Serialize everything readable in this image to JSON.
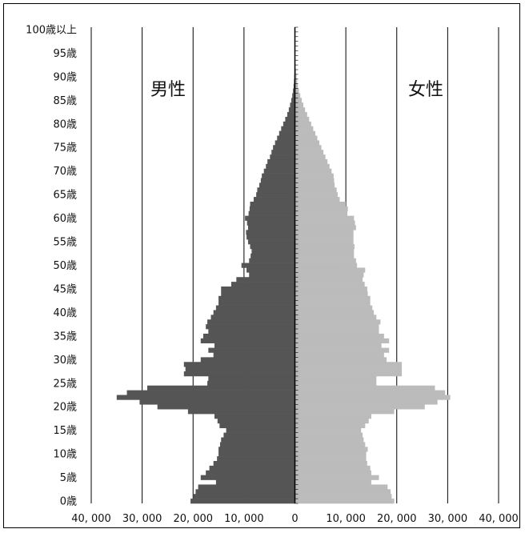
{
  "chart_data": {
    "type": "bar",
    "subtype": "population-pyramid",
    "title": "",
    "xlim": [
      -40000,
      40000
    ],
    "x_ticks": [
      -40000,
      -30000,
      -20000,
      -10000,
      0,
      10000,
      20000,
      30000,
      40000
    ],
    "x_tick_labels": [
      "40, 000",
      "30, 000",
      "20, 000",
      "10, 000",
      "0",
      "10, 000",
      "20, 000",
      "30, 000",
      "40, 000"
    ],
    "grid": "vertical",
    "age_labels": [
      "0歳",
      "5歳",
      "10歳",
      "15歳",
      "20歳",
      "25歳",
      "30歳",
      "35歳",
      "40歳",
      "45歳",
      "50歳",
      "55歳",
      "60歳",
      "65歳",
      "70歳",
      "75歳",
      "80歳",
      "85歳",
      "90歳",
      "95歳",
      "100歳以上"
    ],
    "series": [
      {
        "name": "男性",
        "side": "left",
        "color": "#555555",
        "values": [
          20500,
          20000,
          19500,
          19000,
          15500,
          18500,
          17500,
          16800,
          16000,
          15300,
          15000,
          15000,
          14700,
          14500,
          14000,
          13500,
          14800,
          15200,
          15800,
          21000,
          27000,
          30500,
          35000,
          33000,
          29000,
          17200,
          17000,
          21800,
          21500,
          21800,
          18500,
          16000,
          17000,
          15800,
          18500,
          18000,
          17000,
          17500,
          17200,
          16500,
          16000,
          15500,
          15000,
          15000,
          14500,
          14500,
          12500,
          11500,
          9000,
          9500,
          10500,
          9000,
          8700,
          8500,
          8800,
          9200,
          9500,
          9600,
          9200,
          9400,
          9800,
          9100,
          8900,
          8800,
          8100,
          7600,
          7400,
          7000,
          6700,
          6500,
          6100,
          5700,
          5400,
          4900,
          4600,
          4300,
          3900,
          3500,
          3100,
          2700,
          2300,
          1900,
          1500,
          1200,
          950,
          700,
          520,
          370,
          260,
          180,
          120,
          80,
          55,
          35,
          22,
          14,
          9,
          6,
          4,
          3,
          5
        ]
      },
      {
        "name": "女性",
        "side": "right",
        "color": "#bbbbbb",
        "values": [
          19500,
          19000,
          18800,
          18200,
          15000,
          16500,
          15000,
          14800,
          14200,
          14000,
          14000,
          14300,
          13800,
          13500,
          13300,
          13000,
          13800,
          14500,
          15000,
          19500,
          25500,
          28000,
          30500,
          29500,
          27500,
          16000,
          16000,
          21000,
          21000,
          21000,
          18000,
          17500,
          18500,
          17000,
          18500,
          17500,
          16500,
          16500,
          16800,
          16000,
          15500,
          15200,
          14800,
          14800,
          14300,
          14200,
          13700,
          13300,
          13500,
          13800,
          12200,
          12000,
          11600,
          11600,
          11700,
          11500,
          11500,
          11500,
          12000,
          11800,
          11600,
          10300,
          10400,
          10000,
          8800,
          8400,
          8200,
          7800,
          7700,
          7600,
          7200,
          6800,
          6400,
          6000,
          5600,
          5200,
          4800,
          4400,
          4000,
          3600,
          3200,
          2800,
          2400,
          2000,
          1650,
          1350,
          1050,
          800,
          600,
          450,
          320,
          220,
          150,
          100,
          65,
          40,
          25,
          16,
          10,
          6,
          12
        ]
      }
    ]
  },
  "label_male": "男性",
  "label_female": "女性"
}
